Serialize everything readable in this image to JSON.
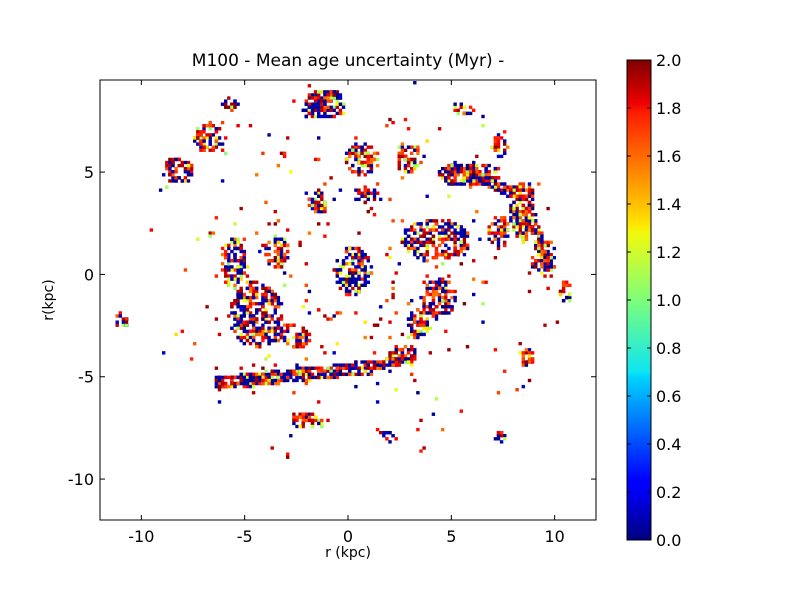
{
  "chart_data": {
    "type": "heatmap",
    "title": "M100 - Mean age uncertainty (Myr) -",
    "xlabel": "r (kpc)",
    "ylabel": "r(kpc)",
    "xlim": [
      -12,
      12
    ],
    "ylim": [
      -12,
      9.5
    ],
    "x_ticks": [
      -10,
      -5,
      0,
      5,
      10
    ],
    "y_ticks": [
      -10,
      -5,
      0,
      5
    ],
    "colorbar": {
      "colormap": "jet",
      "range": [
        0.0,
        2.0
      ],
      "ticks": [
        "0.0",
        "0.2",
        "0.4",
        "0.6",
        "0.8",
        "1.0",
        "1.2",
        "1.4",
        "1.6",
        "1.8",
        "2.0"
      ]
    },
    "grid": false,
    "clumps": [
      {
        "x": 0.2,
        "y": 0.1,
        "rx": 0.9,
        "ry": 1.2,
        "low_fraction": 0.6
      },
      {
        "x": -5.6,
        "y": 0.5,
        "rx": 0.6,
        "ry": 1.3,
        "low_fraction": 0.5
      },
      {
        "x": -4.5,
        "y": -2.0,
        "rx": 1.3,
        "ry": 1.6,
        "low_fraction": 0.4
      },
      {
        "x": -3.5,
        "y": 1.0,
        "rx": 0.6,
        "ry": 0.8,
        "low_fraction": 0.4
      },
      {
        "x": -2.8,
        "y": -3.1,
        "rx": 0.9,
        "ry": 0.6,
        "low_fraction": 0.3
      },
      {
        "x": 4.2,
        "y": 1.6,
        "rx": 1.7,
        "ry": 1.0,
        "low_fraction": 0.35
      },
      {
        "x": 4.3,
        "y": -1.2,
        "rx": 0.9,
        "ry": 1.0,
        "low_fraction": 0.35
      },
      {
        "x": 3.3,
        "y": -2.5,
        "rx": 0.6,
        "ry": 0.7,
        "low_fraction": 0.3
      },
      {
        "x": 5.8,
        "y": 4.8,
        "rx": 1.5,
        "ry": 0.6,
        "low_fraction": 0.4
      },
      {
        "x": 8.4,
        "y": 3.0,
        "rx": 0.6,
        "ry": 1.5,
        "low_fraction": 0.3
      },
      {
        "x": 9.4,
        "y": 0.7,
        "rx": 0.6,
        "ry": 0.9,
        "low_fraction": 0.3
      },
      {
        "x": 10.4,
        "y": -1.0,
        "rx": 0.3,
        "ry": 0.6,
        "low_fraction": 0.3
      },
      {
        "x": 7.2,
        "y": 2.0,
        "rx": 0.5,
        "ry": 0.8,
        "low_fraction": 0.25
      },
      {
        "x": -1.2,
        "y": 8.2,
        "rx": 1.0,
        "ry": 0.7,
        "low_fraction": 0.5
      },
      {
        "x": 0.6,
        "y": 5.5,
        "rx": 0.8,
        "ry": 0.8,
        "low_fraction": 0.3
      },
      {
        "x": 2.8,
        "y": 5.6,
        "rx": 0.6,
        "ry": 0.8,
        "low_fraction": 0.2
      },
      {
        "x": -6.8,
        "y": 6.6,
        "rx": 0.8,
        "ry": 0.7,
        "low_fraction": 0.3
      },
      {
        "x": -8.3,
        "y": 5.0,
        "rx": 0.7,
        "ry": 0.6,
        "low_fraction": 0.3
      },
      {
        "x": -1.5,
        "y": 3.5,
        "rx": 0.5,
        "ry": 0.6,
        "low_fraction": 0.3
      },
      {
        "x": 0.8,
        "y": 3.8,
        "rx": 0.6,
        "ry": 0.4,
        "low_fraction": 0.3
      },
      {
        "x": 7.3,
        "y": 6.2,
        "rx": 0.4,
        "ry": 0.5,
        "low_fraction": 0.3
      },
      {
        "x": 8.6,
        "y": -4.0,
        "rx": 0.3,
        "ry": 0.5,
        "low_fraction": 0.2
      },
      {
        "x": -11.0,
        "y": -2.3,
        "rx": 0.3,
        "ry": 0.4,
        "low_fraction": 0.5
      },
      {
        "x": 2.5,
        "y": -4.0,
        "rx": 0.7,
        "ry": 0.5,
        "low_fraction": 0.3
      },
      {
        "x": 7.3,
        "y": -8.0,
        "rx": 0.3,
        "ry": 0.3,
        "low_fraction": 0.4
      },
      {
        "x": 1.8,
        "y": -8.0,
        "rx": 0.3,
        "ry": 0.3,
        "low_fraction": 0.4
      },
      {
        "x": -2.0,
        "y": -7.2,
        "rx": 0.8,
        "ry": 0.4,
        "low_fraction": 0.3
      },
      {
        "x": -5.8,
        "y": 8.2,
        "rx": 0.4,
        "ry": 0.3,
        "low_fraction": 0.3
      },
      {
        "x": 5.5,
        "y": 8.0,
        "rx": 0.5,
        "ry": 0.3,
        "low_fraction": 0.2
      }
    ],
    "arms": [
      {
        "from": [
          -6.5,
          -5.4
        ],
        "to": [
          1.0,
          -4.6
        ],
        "width": 0.6,
        "low_fraction": 0.4
      },
      {
        "from": [
          1.0,
          -4.6
        ],
        "to": [
          2.8,
          -4.2
        ],
        "width": 0.4,
        "low_fraction": 0.3
      },
      {
        "from": [
          4.8,
          5.2
        ],
        "to": [
          8.4,
          3.8
        ],
        "width": 0.5,
        "low_fraction": 0.35
      },
      {
        "from": [
          8.4,
          3.8
        ],
        "to": [
          9.6,
          0.2
        ],
        "width": 0.4,
        "low_fraction": 0.3
      },
      {
        "from": [
          -2.2,
          7.8
        ],
        "to": [
          -0.6,
          8.8
        ],
        "width": 0.4,
        "low_fraction": 0.45
      }
    ]
  }
}
